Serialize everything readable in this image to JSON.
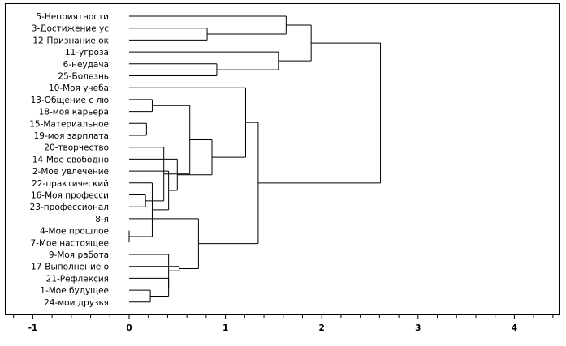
{
  "chart_data": {
    "type": "dendrogram",
    "leaves": [
      "5-Неприятности",
      "3-Достижение ус",
      "12-Признание ок",
      "11-угроза",
      "6-неудача",
      "25-Болезнь",
      "10-Моя учеба",
      "13-Общение с лю",
      "18-моя карьера",
      "15-Материальное",
      "19-моя зарплата",
      "20-творчество",
      "14-Мое свободно",
      "2-Мое увлечение",
      "22-практический",
      "16-Моя професси",
      "23-профессионал",
      "8-я",
      "4-Мое прошлое",
      "7-Мое настоящее",
      "9-Моя работа",
      "17-Выполнение о",
      "21-Рефлексия",
      "1-Мое будущее",
      "24-мои друзья"
    ],
    "merges": [
      {
        "a": 18,
        "b": 19,
        "height": 0.0
      },
      {
        "a": 23,
        "b": 24,
        "height": 0.22
      },
      {
        "a": 15,
        "b": 16,
        "height": 0.17
      },
      {
        "a": 9,
        "b": 10,
        "height": 0.18
      },
      {
        "a": 7,
        "b": 8,
        "height": 0.24
      },
      {
        "a": -1,
        "b": 14,
        "height": 0.24
      },
      {
        "a": -3,
        "b": 11,
        "height": 0.36
      },
      {
        "a": -6,
        "b": 13,
        "height": 0.41
      },
      {
        "a": -2,
        "b": 22,
        "height": 0.41
      },
      {
        "a": -9,
        "b": 20,
        "height": 0.41
      },
      {
        "a": -10,
        "b": 21,
        "height": 0.52
      },
      {
        "a": -8,
        "b": 12,
        "height": 0.5
      },
      {
        "a": -5,
        "b": -7,
        "height": 0.63
      },
      {
        "a": -11,
        "b": 17,
        "height": 0.72
      },
      {
        "a": -13,
        "b": -12,
        "height": 0.86
      },
      {
        "a": 1,
        "b": 2,
        "height": 0.81
      },
      {
        "a": 4,
        "b": 5,
        "height": 0.91
      },
      {
        "a": -15,
        "b": 6,
        "height": 1.21
      },
      {
        "a": -18,
        "b": -14,
        "height": 1.34
      },
      {
        "a": 3,
        "b": -17,
        "height": 1.55
      },
      {
        "a": 0,
        "b": -16,
        "height": 1.63
      },
      {
        "a": -21,
        "b": -20,
        "height": 1.89
      },
      {
        "a": -22,
        "b": -19,
        "height": 2.61
      }
    ],
    "x_ticks": [
      "-1",
      "0",
      "1",
      "2",
      "3",
      "4"
    ],
    "xlim": [
      -1.5,
      4.5
    ]
  }
}
